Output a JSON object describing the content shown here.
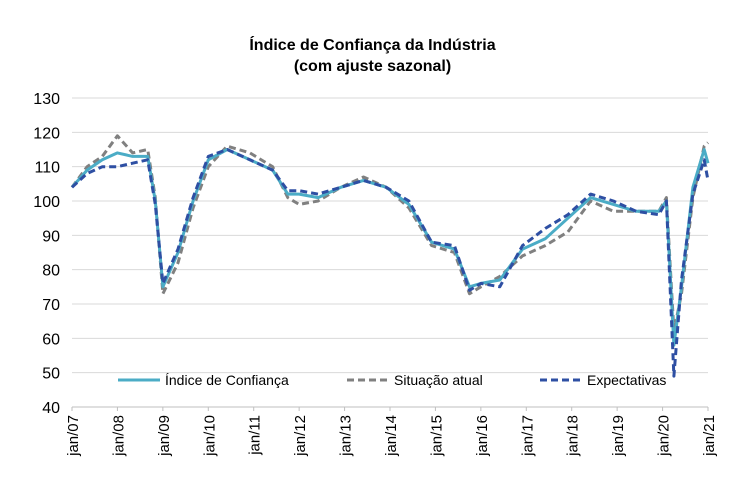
{
  "chart_data": {
    "type": "line",
    "title": "Índice de Confiança da Indústria",
    "subtitle": "(com ajuste sazonal)",
    "xlabel": "",
    "ylabel": "",
    "ylim": [
      40,
      130
    ],
    "yticks": [
      40,
      50,
      60,
      70,
      80,
      90,
      100,
      110,
      120,
      130
    ],
    "xlim": [
      "2007-01",
      "2021-01"
    ],
    "xtick_labels": [
      "jan/07",
      "jan/08",
      "jan/09",
      "jan/10",
      "jan/11",
      "jan/12",
      "jan/13",
      "jan/14",
      "jan/15",
      "jan/16",
      "jan/17",
      "jan/18",
      "jan/19",
      "jan/20",
      "jan/21"
    ],
    "grid": {
      "horizontal": true,
      "vertical": false
    },
    "legend_position": "bottom-inside",
    "series": [
      {
        "name": "Índice de Confiança",
        "color": "#4bacc6",
        "style": "solid",
        "points": [
          [
            "2007-01",
            104
          ],
          [
            "2007-05",
            109
          ],
          [
            "2007-09",
            112
          ],
          [
            "2008-01",
            114
          ],
          [
            "2008-05",
            113
          ],
          [
            "2008-09",
            113
          ],
          [
            "2008-11",
            100
          ],
          [
            "2009-01",
            75
          ],
          [
            "2009-05",
            85
          ],
          [
            "2009-09",
            100
          ],
          [
            "2010-01",
            112
          ],
          [
            "2010-06",
            115
          ],
          [
            "2010-12",
            112
          ],
          [
            "2011-06",
            109
          ],
          [
            "2011-10",
            102
          ],
          [
            "2012-01",
            102
          ],
          [
            "2012-06",
            101
          ],
          [
            "2012-12",
            104
          ],
          [
            "2013-06",
            106
          ],
          [
            "2013-12",
            104
          ],
          [
            "2014-06",
            99
          ],
          [
            "2014-12",
            88
          ],
          [
            "2015-06",
            86
          ],
          [
            "2015-10",
            75
          ],
          [
            "2016-01",
            76
          ],
          [
            "2016-06",
            77
          ],
          [
            "2016-12",
            86
          ],
          [
            "2017-06",
            89
          ],
          [
            "2017-12",
            95
          ],
          [
            "2018-06",
            101
          ],
          [
            "2018-12",
            99
          ],
          [
            "2019-06",
            97
          ],
          [
            "2019-12",
            97
          ],
          [
            "2020-02",
            100
          ],
          [
            "2020-04",
            58
          ],
          [
            "2020-06",
            75
          ],
          [
            "2020-09",
            104
          ],
          [
            "2020-12",
            115
          ],
          [
            "2021-01",
            111
          ]
        ]
      },
      {
        "name": "Situação atual",
        "color": "#808080",
        "style": "dash",
        "points": [
          [
            "2007-01",
            104
          ],
          [
            "2007-05",
            110
          ],
          [
            "2007-09",
            113
          ],
          [
            "2008-01",
            119
          ],
          [
            "2008-05",
            114
          ],
          [
            "2008-09",
            115
          ],
          [
            "2008-11",
            101
          ],
          [
            "2009-01",
            73
          ],
          [
            "2009-05",
            82
          ],
          [
            "2009-09",
            98
          ],
          [
            "2010-01",
            110
          ],
          [
            "2010-06",
            116
          ],
          [
            "2010-12",
            114
          ],
          [
            "2011-06",
            110
          ],
          [
            "2011-10",
            101
          ],
          [
            "2012-01",
            99
          ],
          [
            "2012-06",
            100
          ],
          [
            "2012-12",
            104
          ],
          [
            "2013-06",
            107
          ],
          [
            "2013-12",
            104
          ],
          [
            "2014-06",
            98
          ],
          [
            "2014-12",
            87
          ],
          [
            "2015-06",
            85
          ],
          [
            "2015-10",
            73
          ],
          [
            "2016-01",
            75
          ],
          [
            "2016-06",
            78
          ],
          [
            "2016-12",
            84
          ],
          [
            "2017-06",
            87
          ],
          [
            "2017-12",
            91
          ],
          [
            "2018-06",
            100
          ],
          [
            "2018-12",
            97
          ],
          [
            "2019-06",
            97
          ],
          [
            "2019-12",
            97
          ],
          [
            "2020-02",
            101
          ],
          [
            "2020-04",
            62
          ],
          [
            "2020-06",
            73
          ],
          [
            "2020-09",
            101
          ],
          [
            "2020-12",
            116
          ],
          [
            "2021-01",
            117
          ]
        ]
      },
      {
        "name": "Expectativas",
        "color": "#2e4fa3",
        "style": "dash",
        "points": [
          [
            "2007-01",
            104
          ],
          [
            "2007-05",
            108
          ],
          [
            "2007-09",
            110
          ],
          [
            "2008-01",
            110
          ],
          [
            "2008-05",
            111
          ],
          [
            "2008-09",
            112
          ],
          [
            "2008-11",
            99
          ],
          [
            "2009-01",
            76
          ],
          [
            "2009-05",
            86
          ],
          [
            "2009-09",
            101
          ],
          [
            "2010-01",
            113
          ],
          [
            "2010-06",
            115
          ],
          [
            "2010-12",
            112
          ],
          [
            "2011-06",
            109
          ],
          [
            "2011-10",
            103
          ],
          [
            "2012-01",
            103
          ],
          [
            "2012-06",
            102
          ],
          [
            "2012-12",
            104
          ],
          [
            "2013-06",
            106
          ],
          [
            "2013-12",
            104
          ],
          [
            "2014-06",
            100
          ],
          [
            "2014-12",
            88
          ],
          [
            "2015-06",
            87
          ],
          [
            "2015-10",
            74
          ],
          [
            "2016-01",
            76
          ],
          [
            "2016-06",
            75
          ],
          [
            "2016-12",
            87
          ],
          [
            "2017-06",
            92
          ],
          [
            "2017-12",
            96
          ],
          [
            "2018-06",
            102
          ],
          [
            "2018-12",
            100
          ],
          [
            "2019-06",
            97
          ],
          [
            "2019-12",
            96
          ],
          [
            "2020-02",
            100
          ],
          [
            "2020-04",
            49
          ],
          [
            "2020-06",
            77
          ],
          [
            "2020-09",
            102
          ],
          [
            "2020-12",
            112
          ],
          [
            "2021-01",
            106
          ]
        ]
      }
    ]
  }
}
